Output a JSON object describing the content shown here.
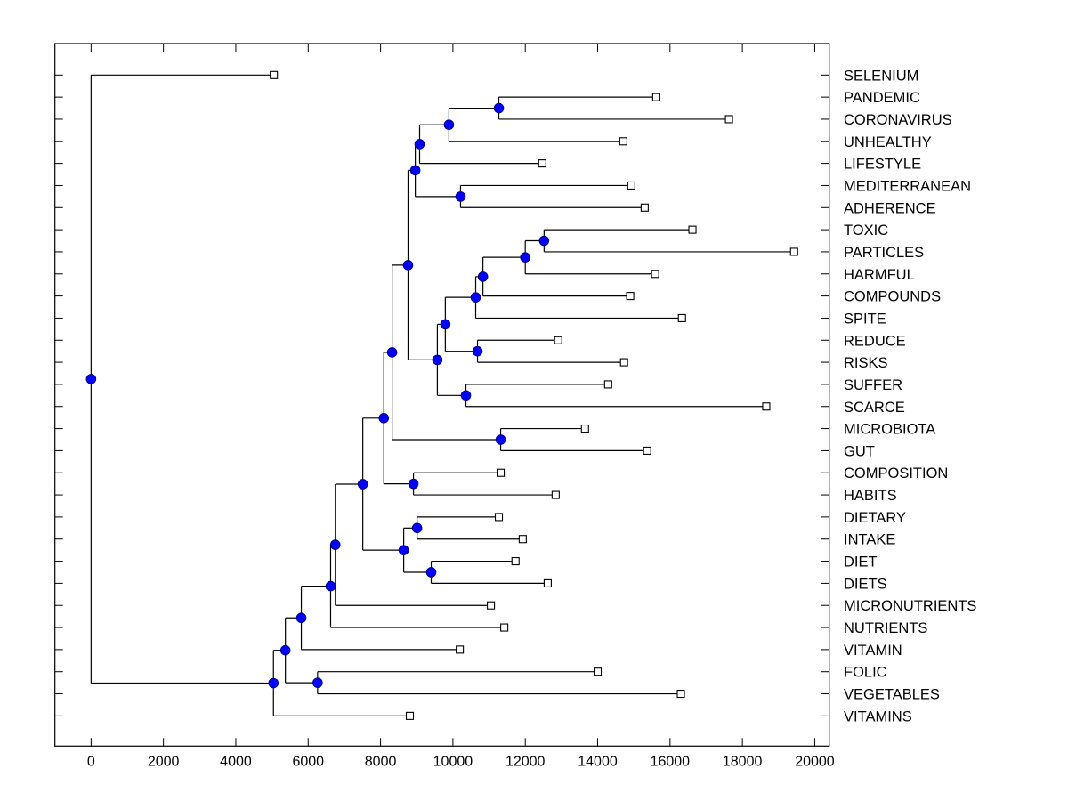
{
  "chart_data": {
    "type": "dendrogram",
    "title": "",
    "xlabel": "",
    "ylabel": "",
    "xlim": [
      -1000,
      20400
    ],
    "x_ticks": [
      0,
      2000,
      4000,
      6000,
      8000,
      10000,
      12000,
      14000,
      16000,
      18000,
      20000
    ],
    "x_tick_labels": [
      "0",
      "2000",
      "4000",
      "6000",
      "8000",
      "10000",
      "12000",
      "14000",
      "16000",
      "18000",
      "20000"
    ],
    "grid": false,
    "leaf_labels_position": "right",
    "colors": {
      "node_fill": "#0000ff",
      "node_stroke": "#000080",
      "line": "#000000",
      "leaf_fill": "#ffffff"
    },
    "leaves": [
      {
        "id": "SELENIUM",
        "label": "SELENIUM",
        "x": 5050
      },
      {
        "id": "PANDEMIC",
        "label": "PANDEMIC",
        "x": 15620
      },
      {
        "id": "CORONAVIRUS",
        "label": "CORONAVIRUS",
        "x": 17630
      },
      {
        "id": "UNHEALTHY",
        "label": "UNHEALTHY",
        "x": 14710
      },
      {
        "id": "LIFESTYLE",
        "label": "LIFESTYLE",
        "x": 12470
      },
      {
        "id": "MEDITERRANEAN",
        "label": "MEDITERRANEAN",
        "x": 14930
      },
      {
        "id": "ADHERENCE",
        "label": "ADHERENCE",
        "x": 15300
      },
      {
        "id": "TOXIC",
        "label": "TOXIC",
        "x": 16620
      },
      {
        "id": "PARTICLES",
        "label": "PARTICLES",
        "x": 19430
      },
      {
        "id": "HARMFUL",
        "label": "HARMFUL",
        "x": 15590
      },
      {
        "id": "COMPOUNDS",
        "label": "COMPOUNDS",
        "x": 14900
      },
      {
        "id": "SPITE",
        "label": "SPITE",
        "x": 16330
      },
      {
        "id": "REDUCE",
        "label": "REDUCE",
        "x": 12910
      },
      {
        "id": "RISKS",
        "label": "RISKS",
        "x": 14730
      },
      {
        "id": "SUFFER",
        "label": "SUFFER",
        "x": 14290
      },
      {
        "id": "SCARCE",
        "label": "SCARCE",
        "x": 18660
      },
      {
        "id": "MICROBIOTA",
        "label": "MICROBIOTA",
        "x": 13650
      },
      {
        "id": "GUT",
        "label": "GUT",
        "x": 15370
      },
      {
        "id": "COMPOSITION",
        "label": "COMPOSITION",
        "x": 11320
      },
      {
        "id": "HABITS",
        "label": "HABITS",
        "x": 12840
      },
      {
        "id": "DIETARY",
        "label": "DIETARY",
        "x": 11270
      },
      {
        "id": "INTAKE",
        "label": "INTAKE",
        "x": 11930
      },
      {
        "id": "DIET",
        "label": "DIET",
        "x": 11730
      },
      {
        "id": "DIETS",
        "label": "DIETS",
        "x": 12620
      },
      {
        "id": "MICRONUTRIENTS",
        "label": "MICRONUTRIENTS",
        "x": 11050
      },
      {
        "id": "NUTRIENTS",
        "label": "NUTRIENTS",
        "x": 11420
      },
      {
        "id": "VITAMIN",
        "label": "VITAMIN",
        "x": 10190
      },
      {
        "id": "FOLIC",
        "label": "FOLIC",
        "x": 14000
      },
      {
        "id": "VEGETABLES",
        "label": "VEGETABLES",
        "x": 16300
      },
      {
        "id": "VITAMINS",
        "label": "VITAMINS",
        "x": 8810
      }
    ],
    "nodes": [
      {
        "id": "n_pc",
        "x": 11270,
        "children": [
          "PANDEMIC",
          "CORONAVIRUS"
        ]
      },
      {
        "id": "n_pcu",
        "x": 9890,
        "children": [
          "n_pc",
          "UNHEALTHY"
        ]
      },
      {
        "id": "n_pcul",
        "x": 9080,
        "children": [
          "n_pcu",
          "LIFESTYLE"
        ]
      },
      {
        "id": "n_ma",
        "x": 10210,
        "children": [
          "MEDITERRANEAN",
          "ADHERENCE"
        ]
      },
      {
        "id": "n_upper",
        "x": 8960,
        "children": [
          "n_pcul",
          "n_ma"
        ]
      },
      {
        "id": "n_tp",
        "x": 12520,
        "children": [
          "TOXIC",
          "PARTICLES"
        ]
      },
      {
        "id": "n_tph",
        "x": 12000,
        "children": [
          "n_tp",
          "HARMFUL"
        ]
      },
      {
        "id": "n_tphc",
        "x": 10830,
        "children": [
          "n_tph",
          "COMPOUNDS"
        ]
      },
      {
        "id": "n_tphcs",
        "x": 10630,
        "children": [
          "n_tphc",
          "SPITE"
        ]
      },
      {
        "id": "n_rr",
        "x": 10680,
        "children": [
          "REDUCE",
          "RISKS"
        ]
      },
      {
        "id": "n_mid1",
        "x": 9790,
        "children": [
          "n_tphcs",
          "n_rr"
        ]
      },
      {
        "id": "n_ss",
        "x": 10360,
        "children": [
          "SUFFER",
          "SCARCE"
        ]
      },
      {
        "id": "n_mid2",
        "x": 9570,
        "children": [
          "n_mid1",
          "n_ss"
        ]
      },
      {
        "id": "n_big",
        "x": 8760,
        "children": [
          "n_upper",
          "n_mid2"
        ]
      },
      {
        "id": "n_mg",
        "x": 11320,
        "children": [
          "MICROBIOTA",
          "GUT"
        ]
      },
      {
        "id": "n_bigmg",
        "x": 8320,
        "children": [
          "n_big",
          "n_mg"
        ]
      },
      {
        "id": "n_ch",
        "x": 8910,
        "children": [
          "COMPOSITION",
          "HABITS"
        ]
      },
      {
        "id": "n_bigch",
        "x": 8090,
        "children": [
          "n_bigmg",
          "n_ch"
        ]
      },
      {
        "id": "n_di",
        "x": 9010,
        "children": [
          "DIETARY",
          "INTAKE"
        ]
      },
      {
        "id": "n_dd",
        "x": 9400,
        "children": [
          "DIET",
          "DIETS"
        ]
      },
      {
        "id": "n_diet",
        "x": 8640,
        "children": [
          "n_di",
          "n_dd"
        ]
      },
      {
        "id": "n_main",
        "x": 7510,
        "children": [
          "n_bigch",
          "n_diet"
        ]
      },
      {
        "id": "n_micro",
        "x": 6750,
        "children": [
          "n_main",
          "MICRONUTRIENTS"
        ]
      },
      {
        "id": "n_nutr",
        "x": 6620,
        "children": [
          "n_micro",
          "NUTRIENTS"
        ]
      },
      {
        "id": "n_vit",
        "x": 5810,
        "children": [
          "n_nutr",
          "VITAMIN"
        ]
      },
      {
        "id": "n_fv",
        "x": 6260,
        "children": [
          "FOLIC",
          "VEGETABLES"
        ]
      },
      {
        "id": "n_vitfv",
        "x": 5370,
        "children": [
          "n_vit",
          "n_fv"
        ]
      },
      {
        "id": "n_all",
        "x": 5040,
        "children": [
          "n_vitfv",
          "VITAMINS"
        ]
      },
      {
        "id": "root",
        "x": 0,
        "children": [
          "SELENIUM",
          "n_all"
        ]
      }
    ]
  }
}
